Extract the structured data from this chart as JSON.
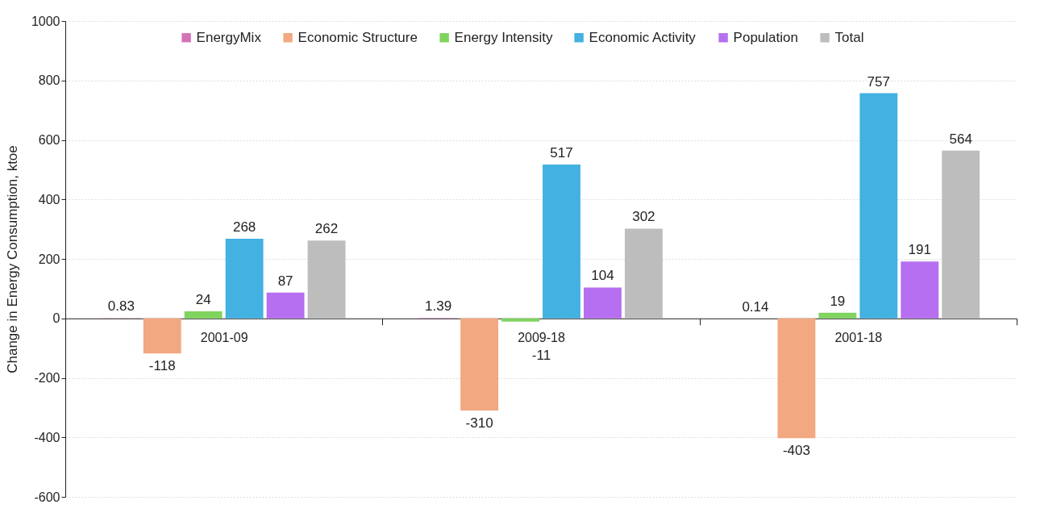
{
  "chart_data": {
    "type": "bar",
    "ylabel": "Change in Energy Consumption, ktoe",
    "categories": [
      "2001-09",
      "2009-18",
      "2001-18"
    ],
    "series": [
      {
        "name": "EnergyMix",
        "color": "#d472b8",
        "values": [
          0.83,
          1.39,
          0.14
        ]
      },
      {
        "name": "Economic Structure",
        "color": "#f2a880",
        "values": [
          -118,
          -310,
          -403
        ]
      },
      {
        "name": "Energy Intensity",
        "color": "#7fd45e",
        "values": [
          24,
          -11,
          19
        ]
      },
      {
        "name": "Economic Activity",
        "color": "#43b1e1",
        "values": [
          268,
          517,
          757
        ]
      },
      {
        "name": "Population",
        "color": "#b66ff0",
        "values": [
          87,
          104,
          191
        ]
      },
      {
        "name": "Total",
        "color": "#bdbdbd",
        "values": [
          262,
          302,
          564
        ]
      }
    ],
    "ylim": [
      -600,
      1000
    ],
    "yticks": [
      -600,
      -400,
      -200,
      0,
      200,
      400,
      600,
      800,
      1000
    ],
    "grid": "y",
    "legend": "top",
    "data_labels": true
  }
}
